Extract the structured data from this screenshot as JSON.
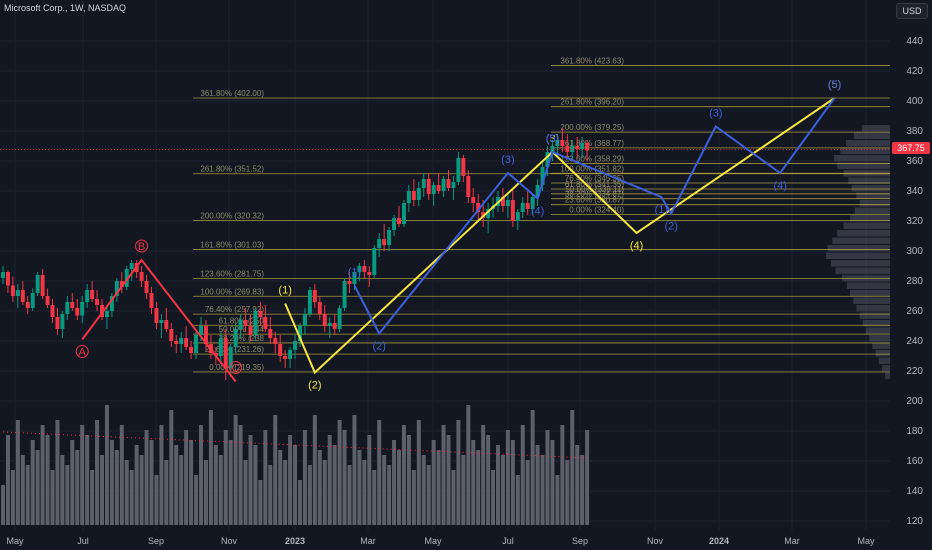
{
  "header": {
    "title": "Microsoft Corp., 1W, NASDAQ",
    "currency": "USD",
    "last_price": "367.75"
  },
  "chart_data": {
    "type": "candlestick",
    "price_axis": {
      "ticks": [
        120,
        140,
        160,
        180,
        200,
        220,
        240,
        260,
        280,
        300,
        320,
        340,
        360,
        380,
        400,
        420,
        440
      ]
    },
    "time_axis": {
      "ticks": [
        {
          "label": "May",
          "bold": false
        },
        {
          "label": "Jul",
          "bold": false
        },
        {
          "label": "Sep",
          "bold": false
        },
        {
          "label": "Nov",
          "bold": false
        },
        {
          "label": "2023",
          "bold": true
        },
        {
          "label": "Mar",
          "bold": false
        },
        {
          "label": "May",
          "bold": false
        },
        {
          "label": "Jul",
          "bold": false
        },
        {
          "label": "Sep",
          "bold": false
        },
        {
          "label": "Nov",
          "bold": false
        },
        {
          "label": "2024",
          "bold": true
        },
        {
          "label": "Mar",
          "bold": false
        },
        {
          "label": "May",
          "bold": false
        }
      ]
    },
    "fib_levels_left": [
      {
        "label": "361.80% (402.00)",
        "price": 402.0
      },
      {
        "label": "261.80% (351.52)",
        "price": 351.52
      },
      {
        "label": "200.00% (320.32)",
        "price": 320.32
      },
      {
        "label": "161.80% (301.03)",
        "price": 301.03
      },
      {
        "label": "123.60% (281.75)",
        "price": 281.75
      },
      {
        "label": "100.00% (269.83)",
        "price": 269.83
      },
      {
        "label": "76.40% (257.92)",
        "price": 257.92
      },
      {
        "label": "61.80% (250",
        "price": 250.5
      },
      {
        "label": "50.00% (244",
        "price": 244.6
      },
      {
        "label": "38.20% (238",
        "price": 238.7
      },
      {
        "label": "23.60% (231.26)",
        "price": 231.26
      },
      {
        "label": "0.00% (219.35)",
        "price": 219.35
      }
    ],
    "fib_levels_right": [
      {
        "label": "361.80% (423.63)",
        "price": 423.63
      },
      {
        "label": "261.80% (396.20)",
        "price": 396.2
      },
      {
        "label": "200.00% (379.25)",
        "price": 379.25
      },
      {
        "label": "161.80% (368.77)",
        "price": 368.77
      },
      {
        "label": "123.60% (358.29)",
        "price": 358.29
      },
      {
        "label": "100.00% (351.82)",
        "price": 351.82
      },
      {
        "label": "76.40% (345.35)",
        "price": 345.35
      },
      {
        "label": "61.80% (341.35)",
        "price": 341.35
      },
      {
        "label": "50.00% (338.11)",
        "price": 338.11
      },
      {
        "label": "38.20% (334.87)",
        "price": 334.87
      },
      {
        "label": "23.60% (330.87)",
        "price": 330.87
      },
      {
        "label": "0.00% (324.40)",
        "price": 324.4
      }
    ],
    "waves_red": [
      {
        "label": "A",
        "price": 241,
        "t": 16
      },
      {
        "label": "B",
        "price": 294,
        "t": 28
      },
      {
        "label": "C",
        "price": 213,
        "t": 47
      }
    ],
    "waves_yellow": [
      {
        "label": "(1)",
        "price": 265,
        "t": 57
      },
      {
        "label": "(2)",
        "price": 219,
        "t": 63
      },
      {
        "label": "(3)",
        "price": 366,
        "t": 111
      },
      {
        "label": "(4)",
        "price": 312,
        "t": 128
      },
      {
        "label": "(5)",
        "price": 402,
        "t": 168
      }
    ],
    "waves_blue": [
      {
        "label": "(1)",
        "price": 277,
        "t": 71
      },
      {
        "label": "(2)",
        "price": 245,
        "t": 76
      },
      {
        "label": "(3)",
        "price": 352,
        "t": 102
      },
      {
        "label": "(4)",
        "price": 335,
        "t": 108
      },
      {
        "label": "(5)",
        "price": 366,
        "t": 111
      },
      {
        "label": "(1)",
        "price": 336,
        "t": 133
      },
      {
        "label": "(2)",
        "price": 325,
        "t": 135
      },
      {
        "label": "(3)",
        "price": 383,
        "t": 144
      },
      {
        "label": "(4)",
        "price": 352,
        "t": 157
      },
      {
        "label": "(5)",
        "price": 402,
        "t": 168
      }
    ],
    "candles": [
      [
        282,
        290,
        278,
        286
      ],
      [
        286,
        287,
        272,
        277
      ],
      [
        277,
        283,
        266,
        270
      ],
      [
        270,
        278,
        262,
        274
      ],
      [
        274,
        280,
        264,
        266
      ],
      [
        266,
        270,
        258,
        262
      ],
      [
        262,
        275,
        260,
        272
      ],
      [
        272,
        286,
        270,
        284
      ],
      [
        284,
        288,
        268,
        270
      ],
      [
        270,
        275,
        262,
        264
      ],
      [
        264,
        268,
        252,
        256
      ],
      [
        256,
        262,
        244,
        248
      ],
      [
        248,
        260,
        242,
        258
      ],
      [
        258,
        270,
        254,
        266
      ],
      [
        266,
        272,
        260,
        262
      ],
      [
        262,
        268,
        254,
        257
      ],
      [
        257,
        270,
        252,
        266
      ],
      [
        266,
        278,
        262,
        274
      ],
      [
        274,
        280,
        266,
        268
      ],
      [
        268,
        274,
        260,
        264
      ],
      [
        264,
        268,
        254,
        256
      ],
      [
        256,
        264,
        248,
        260
      ],
      [
        260,
        272,
        256,
        270
      ],
      [
        270,
        282,
        266,
        280
      ],
      [
        280,
        286,
        272,
        276
      ],
      [
        276,
        290,
        274,
        288
      ],
      [
        288,
        294,
        280,
        292
      ],
      [
        292,
        294,
        282,
        286
      ],
      [
        286,
        290,
        276,
        280
      ],
      [
        280,
        284,
        268,
        272
      ],
      [
        272,
        276,
        258,
        262
      ],
      [
        262,
        266,
        248,
        252
      ],
      [
        252,
        258,
        242,
        254
      ],
      [
        254,
        262,
        246,
        248
      ],
      [
        248,
        252,
        236,
        240
      ],
      [
        240,
        244,
        232,
        238
      ],
      [
        238,
        246,
        232,
        242
      ],
      [
        242,
        250,
        234,
        236
      ],
      [
        236,
        240,
        228,
        232
      ],
      [
        232,
        246,
        228,
        244
      ],
      [
        244,
        256,
        240,
        250
      ],
      [
        250,
        254,
        234,
        238
      ],
      [
        238,
        244,
        228,
        232
      ],
      [
        232,
        236,
        224,
        230
      ],
      [
        230,
        246,
        226,
        242
      ],
      [
        242,
        248,
        214,
        222
      ],
      [
        222,
        238,
        216,
        236
      ],
      [
        236,
        252,
        232,
        248
      ],
      [
        248,
        258,
        242,
        254
      ],
      [
        254,
        262,
        246,
        250
      ],
      [
        250,
        258,
        240,
        244
      ],
      [
        244,
        262,
        240,
        260
      ],
      [
        260,
        266,
        250,
        256
      ],
      [
        256,
        264,
        246,
        248
      ],
      [
        248,
        256,
        238,
        242
      ],
      [
        242,
        246,
        232,
        238
      ],
      [
        238,
        244,
        226,
        230
      ],
      [
        230,
        234,
        222,
        228
      ],
      [
        228,
        236,
        222,
        234
      ],
      [
        234,
        244,
        228,
        240
      ],
      [
        240,
        252,
        236,
        250
      ],
      [
        250,
        262,
        244,
        258
      ],
      [
        258,
        276,
        256,
        274
      ],
      [
        274,
        278,
        262,
        266
      ],
      [
        266,
        270,
        254,
        258
      ],
      [
        258,
        264,
        246,
        250
      ],
      [
        250,
        256,
        242,
        252
      ],
      [
        252,
        258,
        244,
        248
      ],
      [
        248,
        264,
        246,
        262
      ],
      [
        262,
        282,
        260,
        280
      ],
      [
        280,
        286,
        272,
        278
      ],
      [
        278,
        288,
        274,
        286
      ],
      [
        286,
        292,
        280,
        290
      ],
      [
        290,
        294,
        282,
        286
      ],
      [
        286,
        290,
        276,
        284
      ],
      [
        284,
        304,
        282,
        302
      ],
      [
        302,
        312,
        296,
        308
      ],
      [
        308,
        318,
        300,
        304
      ],
      [
        304,
        316,
        300,
        314
      ],
      [
        314,
        324,
        310,
        322
      ],
      [
        322,
        330,
        316,
        318
      ],
      [
        318,
        334,
        316,
        332
      ],
      [
        332,
        344,
        326,
        340
      ],
      [
        340,
        348,
        330,
        334
      ],
      [
        334,
        346,
        330,
        342
      ],
      [
        342,
        352,
        336,
        348
      ],
      [
        348,
        352,
        334,
        338
      ],
      [
        338,
        346,
        330,
        344
      ],
      [
        344,
        352,
        338,
        340
      ],
      [
        340,
        350,
        336,
        348
      ],
      [
        348,
        354,
        340,
        342
      ],
      [
        342,
        350,
        334,
        346
      ],
      [
        346,
        366,
        344,
        362
      ],
      [
        362,
        364,
        346,
        350
      ],
      [
        350,
        354,
        332,
        336
      ],
      [
        336,
        342,
        326,
        332
      ],
      [
        332,
        338,
        320,
        326
      ],
      [
        326,
        334,
        316,
        322
      ],
      [
        322,
        332,
        312,
        328
      ],
      [
        328,
        336,
        322,
        330
      ],
      [
        330,
        340,
        326,
        336
      ],
      [
        336,
        342,
        326,
        330
      ],
      [
        330,
        338,
        322,
        334
      ],
      [
        334,
        342,
        316,
        320
      ],
      [
        320,
        328,
        314,
        326
      ],
      [
        326,
        336,
        322,
        332
      ],
      [
        332,
        340,
        324,
        328
      ],
      [
        328,
        338,
        324,
        336
      ],
      [
        336,
        348,
        330,
        344
      ],
      [
        344,
        360,
        340,
        356
      ],
      [
        356,
        370,
        350,
        366
      ],
      [
        366,
        374,
        360,
        370
      ],
      [
        370,
        378,
        362,
        374
      ],
      [
        374,
        382,
        366,
        370
      ],
      [
        370,
        378,
        362,
        366
      ],
      [
        366,
        374,
        360,
        370
      ],
      [
        370,
        376,
        362,
        368
      ],
      [
        368,
        376,
        362,
        372
      ],
      [
        372,
        374,
        360,
        367
      ]
    ],
    "volume_profile": [
      0.35,
      0.45,
      0.55,
      0.62,
      0.7,
      0.66,
      0.58,
      0.52,
      0.48,
      0.42,
      0.38,
      0.44,
      0.5,
      0.58,
      0.66,
      0.72,
      0.78,
      0.8,
      0.74,
      0.68,
      0.6,
      0.54,
      0.5,
      0.46,
      0.42,
      0.38,
      0.34,
      0.3,
      0.26,
      0.22,
      0.18,
      0.14,
      0.1,
      0.06
    ]
  }
}
